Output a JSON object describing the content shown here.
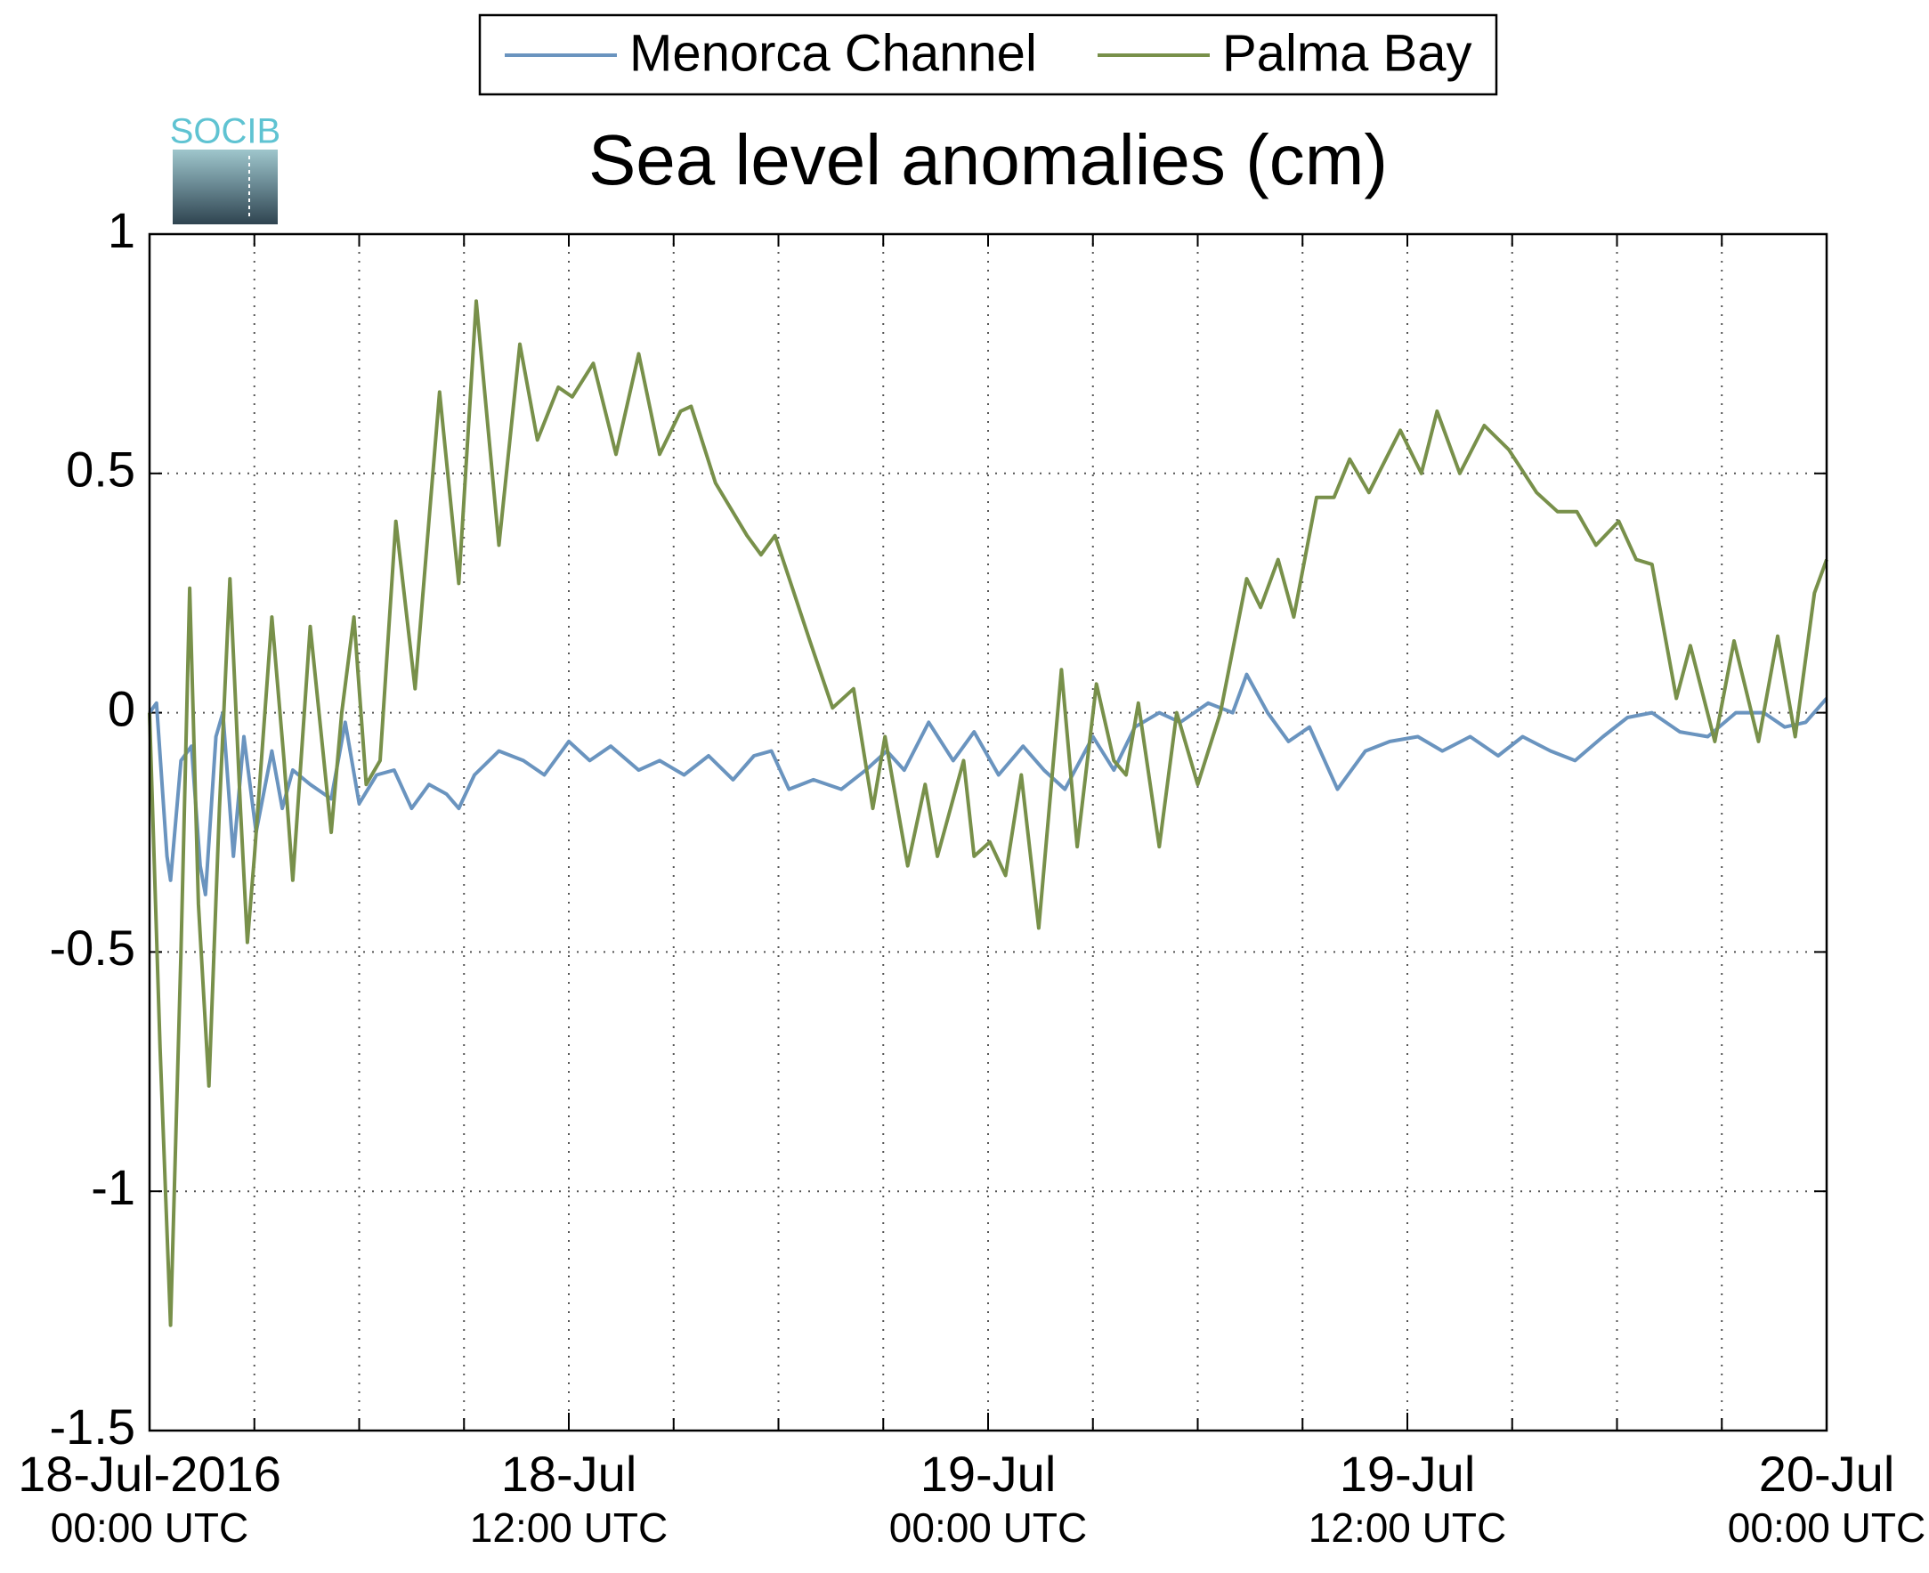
{
  "chart_data": {
    "type": "line",
    "title": "Sea level anomalies (cm)",
    "logo": "SOCIB",
    "xlim": [
      0,
      48
    ],
    "xticks": [
      {
        "value": 0,
        "label": "18-Jul-2016\n00:00 UTC"
      },
      {
        "value": 12,
        "label": "18-Jul\n12:00 UTC"
      },
      {
        "value": 24,
        "label": "19-Jul\n00:00 UTC"
      },
      {
        "value": 36,
        "label": "19-Jul\n12:00 UTC"
      },
      {
        "value": 48,
        "label": "20-Jul\n00:00 UTC"
      }
    ],
    "xminor_ticks": [
      0,
      3,
      6,
      9,
      12,
      15,
      18,
      21,
      24,
      27,
      30,
      33,
      36,
      39,
      42,
      45,
      48
    ],
    "ylim": [
      -1.5,
      1
    ],
    "yticks": [
      -1.5,
      -1,
      -0.5,
      0,
      0.5,
      1
    ],
    "grid": true,
    "legend": "top",
    "series": [
      {
        "name": "Menorca Channel",
        "color": "#6a94bf",
        "x": [
          0,
          0.2,
          0.5,
          0.6,
          0.9,
          1.2,
          1.45,
          1.6,
          1.9,
          2.1,
          2.4,
          2.7,
          3.05,
          3.5,
          3.8,
          4.1,
          4.6,
          5.2,
          5.6,
          6.0,
          6.5,
          7.0,
          7.5,
          8.0,
          8.5,
          8.85,
          9.3,
          10.0,
          10.7,
          11.3,
          12.0,
          12.6,
          13.2,
          14.0,
          14.6,
          15.3,
          16.0,
          16.7,
          17.3,
          17.8,
          18.3,
          19.0,
          19.8,
          20.5,
          21.1,
          21.6,
          22.3,
          23.0,
          23.6,
          24.3,
          25.0,
          25.6,
          26.2,
          27.0,
          27.6,
          28.2,
          28.9,
          29.5,
          30.3,
          31.0,
          31.4,
          32.0,
          32.6,
          33.2,
          34.0,
          34.8,
          35.5,
          36.3,
          37.0,
          37.8,
          38.6,
          39.3,
          40.1,
          40.8,
          41.6,
          42.3,
          43.0,
          43.8,
          44.6,
          45.4,
          46.2,
          46.8,
          47.4,
          48.0
        ],
        "values": [
          0,
          0.02,
          -0.3,
          -0.35,
          -0.1,
          -0.07,
          -0.32,
          -0.38,
          -0.05,
          0,
          -0.3,
          -0.05,
          -0.25,
          -0.08,
          -0.2,
          -0.12,
          -0.15,
          -0.18,
          -0.02,
          -0.19,
          -0.13,
          -0.12,
          -0.2,
          -0.15,
          -0.17,
          -0.2,
          -0.13,
          -0.08,
          -0.1,
          -0.13,
          -0.06,
          -0.1,
          -0.07,
          -0.12,
          -0.1,
          -0.13,
          -0.09,
          -0.14,
          -0.09,
          -0.08,
          -0.16,
          -0.14,
          -0.16,
          -0.12,
          -0.08,
          -0.12,
          -0.02,
          -0.1,
          -0.04,
          -0.13,
          -0.07,
          -0.12,
          -0.16,
          -0.05,
          -0.12,
          -0.03,
          0,
          -0.02,
          0.02,
          0,
          0.08,
          0,
          -0.06,
          -0.03,
          -0.16,
          -0.08,
          -0.06,
          -0.05,
          -0.08,
          -0.05,
          -0.09,
          -0.05,
          -0.08,
          -0.1,
          -0.05,
          -0.01,
          0,
          -0.04,
          -0.05,
          0,
          0,
          -0.03,
          -0.02,
          0.03
        ]
      },
      {
        "name": "Palma Bay",
        "color": "#78904a",
        "x": [
          0,
          0.3,
          0.6,
          0.9,
          1.15,
          1.4,
          1.7,
          2,
          2.3,
          2.6,
          2.8,
          3,
          3.5,
          3.85,
          4.1,
          4.6,
          5.2,
          5.5,
          5.85,
          6.2,
          6.6,
          7.05,
          7.6,
          8.3,
          8.85,
          9.35,
          10,
          10.6,
          11.1,
          11.7,
          12.1,
          12.7,
          13.35,
          14,
          14.6,
          15.2,
          15.5,
          16.2,
          17.1,
          17.5,
          17.9,
          18.4,
          18.9,
          19.55,
          20.15,
          20.7,
          21.05,
          21.7,
          22.2,
          22.55,
          23.3,
          23.6,
          24.05,
          24.5,
          24.95,
          25.45,
          26.1,
          26.55,
          27.1,
          27.6,
          27.95,
          28.3,
          28.9,
          29.4,
          30,
          30.65,
          31.4,
          31.8,
          32.3,
          32.75,
          33.4,
          33.9,
          34.35,
          34.9,
          35.8,
          36.4,
          36.85,
          37.5,
          38.2,
          38.9,
          39.7,
          40.3,
          40.85,
          41.4,
          42.05,
          42.55,
          43,
          43.7,
          44.1,
          44.8,
          45.35,
          46.05,
          46.6,
          47.1,
          47.65,
          48
        ],
        "values": [
          0,
          -0.7,
          -1.28,
          -0.5,
          0.26,
          -0.4,
          -0.78,
          -0.2,
          0.28,
          -0.2,
          -0.48,
          -0.3,
          0.2,
          -0.1,
          -0.35,
          0.18,
          -0.25,
          0,
          0.2,
          -0.15,
          -0.1,
          0.4,
          0.05,
          0.67,
          0.27,
          0.86,
          0.35,
          0.77,
          0.57,
          0.68,
          0.66,
          0.73,
          0.54,
          0.75,
          0.54,
          0.63,
          0.64,
          0.48,
          0.37,
          0.33,
          0.37,
          0.26,
          0.15,
          0.01,
          0.05,
          -0.2,
          -0.05,
          -0.32,
          -0.15,
          -0.3,
          -0.1,
          -0.3,
          -0.27,
          -0.34,
          -0.13,
          -0.45,
          0.09,
          -0.28,
          0.06,
          -0.1,
          -0.13,
          0.02,
          -0.28,
          0,
          -0.15,
          0,
          0.28,
          0.22,
          0.32,
          0.2,
          0.45,
          0.45,
          0.53,
          0.46,
          0.59,
          0.5,
          0.63,
          0.5,
          0.6,
          0.55,
          0.46,
          0.42,
          0.42,
          0.35,
          0.4,
          0.32,
          0.31,
          0.03,
          0.14,
          -0.06,
          0.15,
          -0.06,
          0.16,
          -0.05,
          0.25,
          0.32
        ]
      }
    ]
  }
}
